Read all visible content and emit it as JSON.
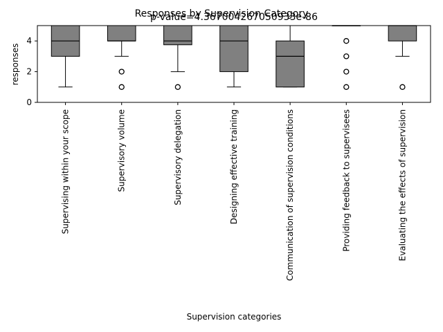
{
  "chart_data": {
    "type": "box",
    "title": "Responses by Supervision Category",
    "subtitle": "p-value=4.367004267050933e-86",
    "xlabel": "Supervision categories",
    "ylabel": "responses",
    "ylim": [
      0,
      5
    ],
    "yticks": [
      0,
      2,
      4
    ],
    "grid": false,
    "box_color": "#808080",
    "categories": [
      "Supervising within your scope",
      "Supervisory volume",
      "Supervisory delegation",
      "Designing effective training",
      "Communication of supervision conditions",
      "Providing feedback to supervisees",
      "Evaluating the effects of supervision"
    ],
    "boxes": [
      {
        "whisker_low": 1,
        "q1": 3,
        "median": 4,
        "q3": 5,
        "whisker_high": 5,
        "outliers": []
      },
      {
        "whisker_low": 3,
        "q1": 4,
        "median": 4,
        "q3": 5,
        "whisker_high": 5,
        "outliers": [
          1,
          2
        ]
      },
      {
        "whisker_low": 2,
        "q1": 3.75,
        "median": 4,
        "q3": 5,
        "whisker_high": 5,
        "outliers": [
          1
        ]
      },
      {
        "whisker_low": 1,
        "q1": 2,
        "median": 4,
        "q3": 5,
        "whisker_high": 5,
        "outliers": []
      },
      {
        "whisker_low": 1,
        "q1": 1,
        "median": 3,
        "q3": 4,
        "whisker_high": 5,
        "outliers": []
      },
      {
        "whisker_low": 5,
        "q1": 5,
        "median": 5,
        "q3": 5,
        "whisker_high": 5,
        "outliers": [
          1,
          2,
          3,
          4
        ]
      },
      {
        "whisker_low": 3,
        "q1": 4,
        "median": 5,
        "q3": 5,
        "whisker_high": 5,
        "outliers": [
          1
        ]
      }
    ]
  }
}
